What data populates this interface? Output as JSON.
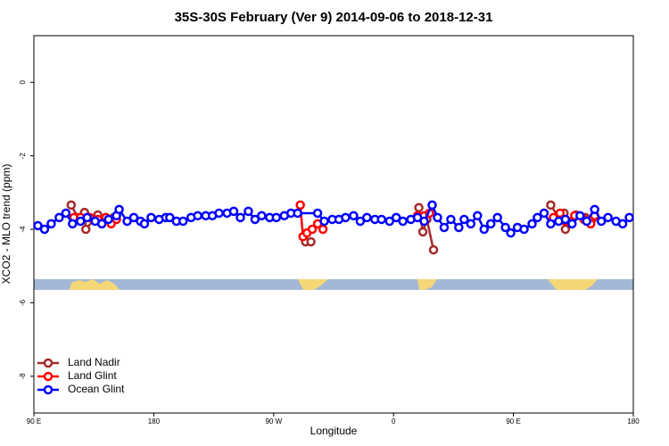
{
  "chart_data": {
    "type": "line",
    "title": "35S-30S February (Ver 9)   2014-09-06 to 2018-12-31",
    "x_label": "Longitude",
    "y_label": "XCO2 - MLO trend (ppm)",
    "xlim": [
      90,
      540
    ],
    "ylim": [
      -9.0,
      1.27
    ],
    "xticks": [
      {
        "value": 90,
        "label": "90 E"
      },
      {
        "value": 180,
        "label": "180"
      },
      {
        "value": 270,
        "label": "90 W"
      },
      {
        "value": 360,
        "label": "0"
      },
      {
        "value": 450,
        "label": "90 E"
      },
      {
        "value": 540,
        "label": "180"
      }
    ],
    "yticks": [
      -8,
      -6,
      -4,
      -2,
      0
    ],
    "legend": "bottom-left",
    "series": [
      {
        "name": "Land Nadir",
        "color": "#a52a2a",
        "x": [
          118,
          123,
          128,
          129,
          138,
          144,
          150,
          null,
          294,
          298,
          null,
          379,
          382,
          385,
          390,
          null,
          478,
          484,
          488,
          489,
          497,
          504,
          509
        ],
        "values": [
          -3.34,
          -3.68,
          -3.54,
          -4.0,
          -3.61,
          -3.68,
          -3.68,
          null,
          -4.34,
          -4.34,
          null,
          -3.41,
          -4.07,
          -3.73,
          -4.56,
          null,
          -3.34,
          -3.68,
          -3.56,
          -4.0,
          -3.61,
          -3.68,
          -3.73
        ]
      },
      {
        "name": "Land Glint",
        "color": "#ff0000",
        "x": [
          120,
          125,
          132,
          138,
          144,
          148,
          152,
          null,
          290,
          292,
          295,
          299,
          303,
          307,
          null,
          378,
          383,
          387,
          null,
          480,
          485,
          489,
          496,
          503,
          508,
          511
        ],
        "values": [
          -3.68,
          -3.68,
          -3.68,
          -3.73,
          -3.68,
          -3.85,
          -3.73,
          null,
          -3.34,
          -4.2,
          -4.1,
          -4.0,
          -3.85,
          -4.0,
          null,
          -3.63,
          -3.63,
          -3.56,
          null,
          -3.68,
          -3.56,
          -3.78,
          -3.63,
          -3.73,
          -3.85,
          -3.63
        ]
      },
      {
        "name": "Ocean Glint",
        "color": "#0000ff",
        "x": [
          93,
          98,
          103,
          109,
          114,
          119,
          125,
          130,
          136,
          141,
          146,
          152,
          154,
          160,
          165,
          170,
          173,
          178,
          184,
          189,
          192,
          197,
          202,
          208,
          213,
          219,
          224,
          229,
          235,
          240,
          245,
          251,
          256,
          261,
          267,
          272,
          278,
          283,
          288,
          303,
          308,
          314,
          319,
          324,
          330,
          335,
          340,
          346,
          351,
          357,
          362,
          367,
          373,
          378,
          383,
          389,
          393,
          398,
          403,
          409,
          413,
          418,
          423,
          428,
          433,
          438,
          444,
          448,
          453,
          458,
          464,
          468,
          473,
          478,
          484,
          489,
          494,
          500,
          505,
          511,
          516,
          521,
          527,
          532,
          537
        ],
        "values": [
          -3.9,
          -4.0,
          -3.85,
          -3.68,
          -3.56,
          -3.85,
          -3.78,
          -3.68,
          -3.78,
          -3.85,
          -3.73,
          -3.63,
          -3.46,
          -3.78,
          -3.68,
          -3.78,
          -3.85,
          -3.68,
          -3.73,
          -3.68,
          -3.68,
          -3.78,
          -3.78,
          -3.68,
          -3.63,
          -3.63,
          -3.63,
          -3.56,
          -3.56,
          -3.51,
          -3.68,
          -3.51,
          -3.73,
          -3.63,
          -3.68,
          -3.68,
          -3.63,
          -3.56,
          -3.56,
          -3.56,
          -3.78,
          -3.73,
          -3.73,
          -3.68,
          -3.63,
          -3.78,
          -3.68,
          -3.73,
          -3.73,
          -3.78,
          -3.68,
          -3.78,
          -3.73,
          -3.68,
          -3.78,
          -3.34,
          -3.68,
          -3.95,
          -3.73,
          -3.95,
          -3.73,
          -3.85,
          -3.63,
          -4.0,
          -3.85,
          -3.68,
          -3.95,
          -4.1,
          -3.95,
          -4.0,
          -3.85,
          -3.68,
          -3.56,
          -3.85,
          -3.78,
          -3.73,
          -3.85,
          -3.63,
          -3.78,
          -3.46,
          -3.78,
          -3.68,
          -3.78,
          -3.85,
          -3.68
        ]
      }
    ]
  }
}
